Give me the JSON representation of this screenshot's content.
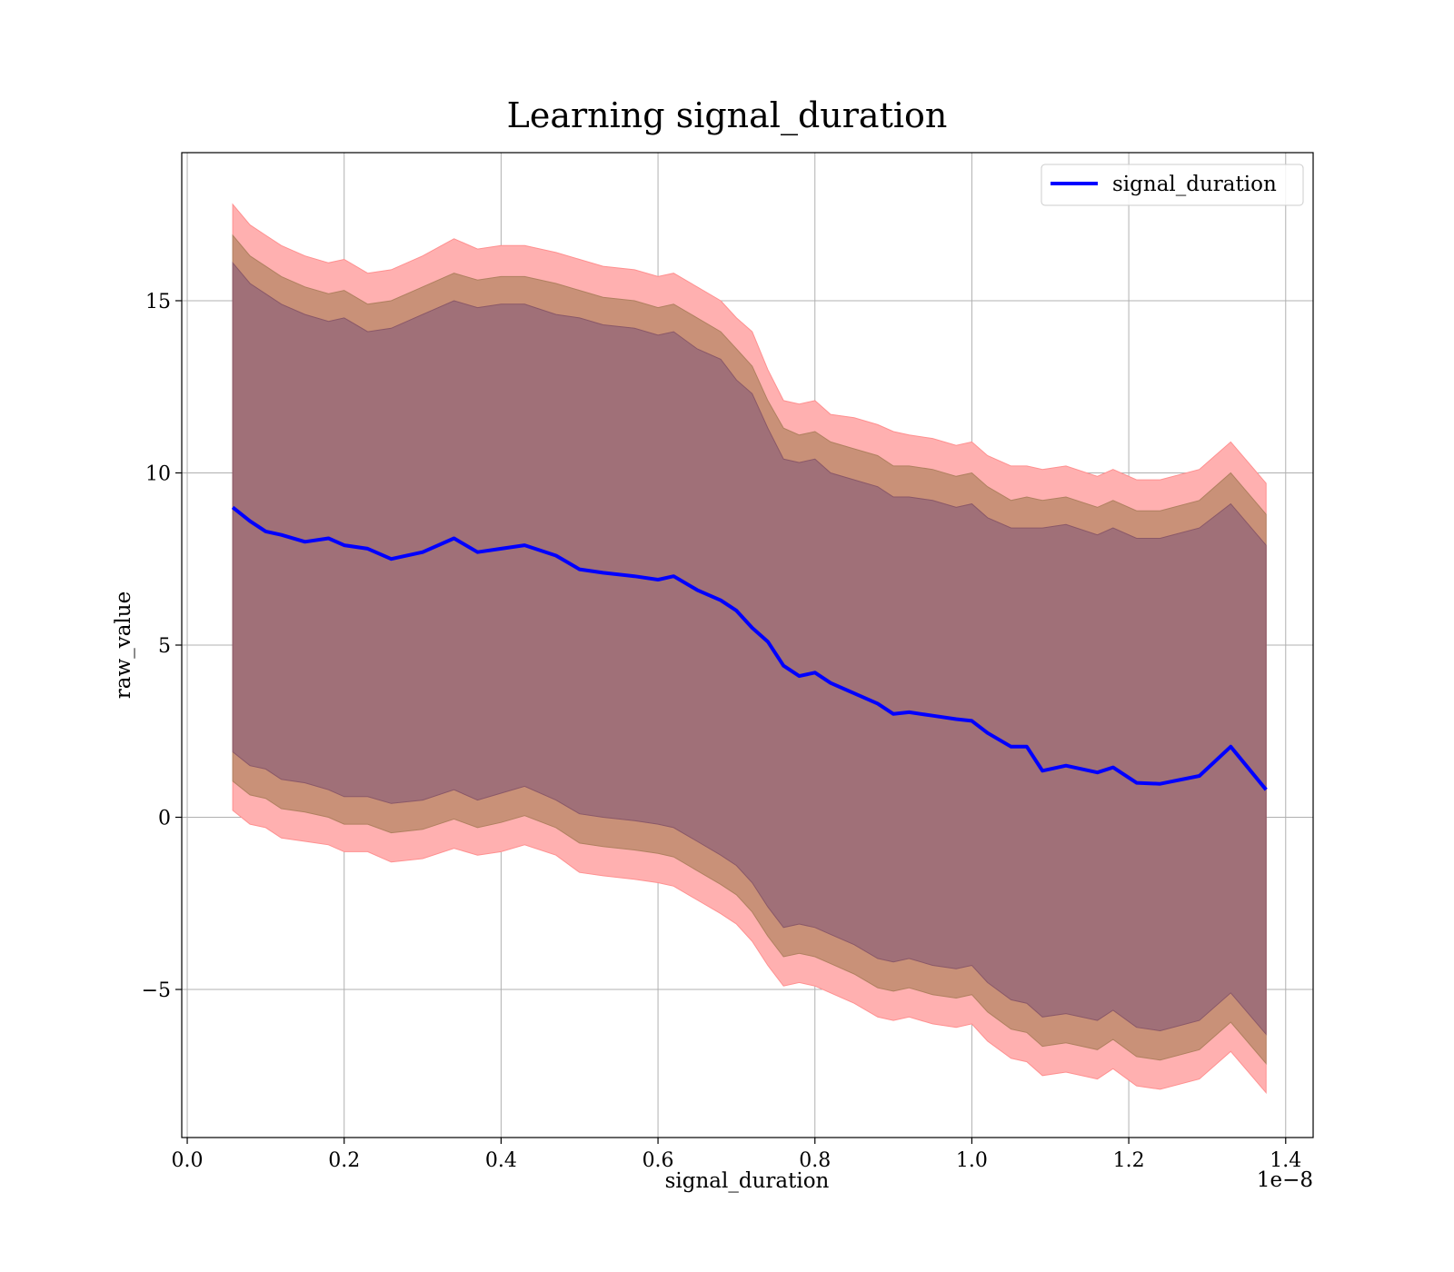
{
  "chart_data": {
    "type": "area",
    "title": "Learning signal_duration",
    "xlabel": "signal_duration",
    "ylabel": "raw_value",
    "x_offset_label": "1e−8",
    "xlim": [
      -0.007,
      1.435
    ],
    "ylim": [
      -9.3,
      19.3
    ],
    "xticks": [
      0.0,
      0.2,
      0.4,
      0.6,
      0.8,
      1.0,
      1.2,
      1.4
    ],
    "xtick_labels": [
      "0.0",
      "0.2",
      "0.4",
      "0.6",
      "0.8",
      "1.0",
      "1.2",
      "1.4"
    ],
    "yticks": [
      -5,
      0,
      5,
      10,
      15
    ],
    "ytick_labels": [
      "−5",
      "0",
      "5",
      "10",
      "15"
    ],
    "grid": true,
    "legend_position": "top-right",
    "colors": {
      "line": "#0000ff",
      "band_outer": "#ffb0b0",
      "band_middle": "#c99178",
      "band_inner": "#a07078",
      "grid": "#b0b0b0"
    },
    "x": [
      0.058,
      0.08,
      0.1,
      0.12,
      0.15,
      0.18,
      0.2,
      0.23,
      0.26,
      0.3,
      0.34,
      0.37,
      0.4,
      0.43,
      0.47,
      0.5,
      0.53,
      0.57,
      0.6,
      0.62,
      0.65,
      0.68,
      0.7,
      0.72,
      0.74,
      0.76,
      0.78,
      0.8,
      0.82,
      0.85,
      0.88,
      0.9,
      0.92,
      0.95,
      0.98,
      1.0,
      1.02,
      1.05,
      1.07,
      1.09,
      1.12,
      1.16,
      1.18,
      1.21,
      1.24,
      1.29,
      1.33,
      1.375
    ],
    "series": [
      {
        "name": "signal_duration",
        "values": [
          9.0,
          8.6,
          8.3,
          8.2,
          8.0,
          8.1,
          7.9,
          7.8,
          7.5,
          7.7,
          8.1,
          7.7,
          7.8,
          7.9,
          7.6,
          7.2,
          7.1,
          7.0,
          6.9,
          7.0,
          6.6,
          6.3,
          6.0,
          5.5,
          5.1,
          4.4,
          4.1,
          4.2,
          3.9,
          3.6,
          3.3,
          3.0,
          3.05,
          2.95,
          2.85,
          2.8,
          2.45,
          2.05,
          2.05,
          1.35,
          1.5,
          1.3,
          1.45,
          1.0,
          0.97,
          1.2,
          2.05,
          0.8
        ]
      }
    ],
    "bands": [
      {
        "upper": [
          17.8,
          17.2,
          16.9,
          16.6,
          16.3,
          16.1,
          16.2,
          15.8,
          15.9,
          16.3,
          16.8,
          16.5,
          16.6,
          16.6,
          16.4,
          16.2,
          16.0,
          15.9,
          15.7,
          15.8,
          15.4,
          15.0,
          14.5,
          14.1,
          13.0,
          12.1,
          12.0,
          12.1,
          11.7,
          11.6,
          11.4,
          11.2,
          11.1,
          11.0,
          10.8,
          10.9,
          10.5,
          10.2,
          10.2,
          10.1,
          10.2,
          9.9,
          10.1,
          9.8,
          9.8,
          10.1,
          10.9,
          9.7
        ],
        "lower": [
          0.2,
          -0.2,
          -0.3,
          -0.6,
          -0.7,
          -0.8,
          -1.0,
          -1.0,
          -1.3,
          -1.2,
          -0.9,
          -1.1,
          -1.0,
          -0.8,
          -1.1,
          -1.6,
          -1.7,
          -1.8,
          -1.9,
          -2.0,
          -2.4,
          -2.8,
          -3.1,
          -3.6,
          -4.3,
          -4.9,
          -4.8,
          -4.9,
          -5.1,
          -5.4,
          -5.8,
          -5.9,
          -5.8,
          -6.0,
          -6.1,
          -6.0,
          -6.5,
          -7.0,
          -7.1,
          -7.5,
          -7.4,
          -7.6,
          -7.3,
          -7.8,
          -7.9,
          -7.6,
          -6.8,
          -8.0
        ]
      },
      {
        "upper": [
          16.9,
          16.3,
          16.0,
          15.7,
          15.4,
          15.2,
          15.3,
          14.9,
          15.0,
          15.4,
          15.8,
          15.6,
          15.7,
          15.7,
          15.5,
          15.3,
          15.1,
          15.0,
          14.8,
          14.9,
          14.5,
          14.1,
          13.6,
          13.1,
          12.1,
          11.3,
          11.1,
          11.2,
          10.9,
          10.7,
          10.5,
          10.2,
          10.2,
          10.1,
          9.9,
          10.0,
          9.6,
          9.2,
          9.3,
          9.2,
          9.3,
          9.0,
          9.2,
          8.9,
          8.9,
          9.2,
          10.0,
          8.8
        ]
      },
      {
        "upper": [
          16.1,
          15.5,
          15.2,
          14.9,
          14.6,
          14.4,
          14.5,
          14.1,
          14.2,
          14.6,
          15.0,
          14.8,
          14.9,
          14.9,
          14.6,
          14.5,
          14.3,
          14.2,
          14.0,
          14.1,
          13.6,
          13.3,
          12.7,
          12.3,
          11.3,
          10.4,
          10.3,
          10.4,
          10.0,
          9.8,
          9.6,
          9.3,
          9.3,
          9.2,
          9.0,
          9.1,
          8.7,
          8.4,
          8.4,
          8.4,
          8.5,
          8.2,
          8.4,
          8.1,
          8.1,
          8.4,
          9.1,
          7.9
        ],
        "lower": [
          1.9,
          1.5,
          1.4,
          1.1,
          1.0,
          0.8,
          0.6,
          0.6,
          0.4,
          0.5,
          0.8,
          0.5,
          0.7,
          0.9,
          0.5,
          0.1,
          0.0,
          -0.1,
          -0.2,
          -0.3,
          -0.7,
          -1.1,
          -1.4,
          -1.9,
          -2.6,
          -3.2,
          -3.1,
          -3.2,
          -3.4,
          -3.7,
          -4.1,
          -4.2,
          -4.1,
          -4.3,
          -4.4,
          -4.3,
          -4.8,
          -5.3,
          -5.4,
          -5.8,
          -5.7,
          -5.9,
          -5.6,
          -6.1,
          -6.2,
          -5.9,
          -5.1,
          -6.3
        ]
      }
    ]
  },
  "legend": {
    "label": "signal_duration"
  }
}
